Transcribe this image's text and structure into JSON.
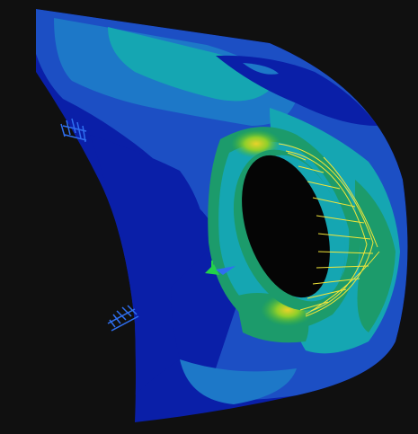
{
  "viewport": {
    "background": "#101010",
    "view": "3d-fea-stress-contour"
  },
  "model": {
    "part": "curved-bracket-with-hole",
    "contour_colors": {
      "lowest": "#0a1fa8",
      "low": "#1c4fc4",
      "low_mid": "#1d78c8",
      "mid": "#15a6b2",
      "mid_high": "#1c9b6b",
      "high": "#33b43a",
      "higher": "#8fcf2a",
      "peak": "#e8d22a"
    },
    "load_color": "#f2e63a",
    "boundary_condition_color": "#2f6ff0",
    "triad_colors": {
      "x": "#2f6ff0",
      "y": "#23d14a",
      "z": "#1f4ad8"
    }
  }
}
